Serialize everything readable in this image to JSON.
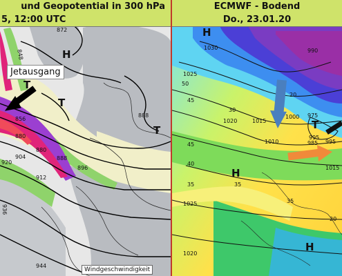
{
  "left_panel": {
    "title_line1": "und Geopotential in 300 hPa",
    "title_line2": "5, 12:00 UTC",
    "annotation": "Jetausgang",
    "legend_label": "Windgeschwindigkeit",
    "pressure_labels": {
      "H1": "H",
      "T1": "T",
      "T2": "T",
      "T3": "T"
    },
    "contour_labels": [
      "872",
      "848",
      "856",
      "880",
      "880",
      "888",
      "888",
      "896",
      "904",
      "912",
      "920",
      "936",
      "944"
    ]
  },
  "right_panel": {
    "title_line1": "ECMWF - Bodend",
    "title_line2": "Do., 23.01.20",
    "pressure_labels": {
      "H1": "H",
      "H2": "H",
      "H3": "H",
      "T1": "T"
    },
    "isobar_labels": [
      "1030",
      "990",
      "1025",
      "1000",
      "1020",
      "1015",
      "1010",
      "995",
      "985",
      "975",
      "995",
      "1015",
      "1025",
      "1020"
    ],
    "temperature_labels": [
      "50",
      "45",
      "30",
      "20",
      "45",
      "40",
      "35",
      "35",
      "35",
      "20"
    ],
    "colors": {
      "arrow_blue": "#4a7fbe",
      "arrow_orange": "#f08a3a",
      "arrow_black": "#111111"
    }
  }
}
